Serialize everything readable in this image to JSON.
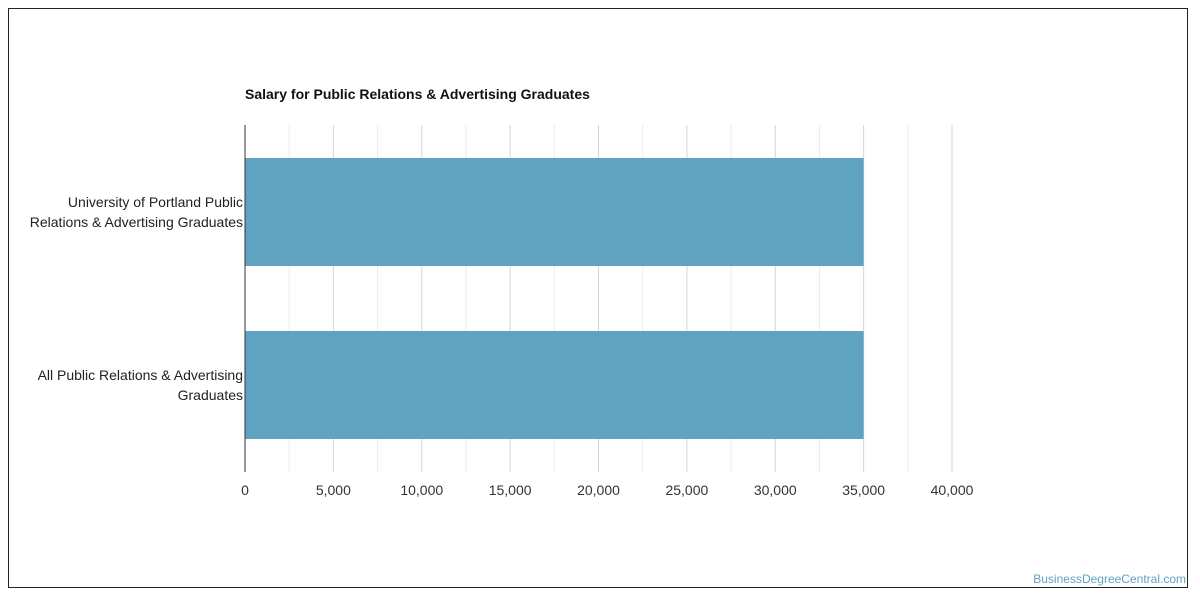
{
  "watermark": "BusinessDegreeCentral.com",
  "chart_data": {
    "type": "bar",
    "orientation": "horizontal",
    "title": "Salary for Public Relations & Advertising Graduates",
    "categories": [
      [
        "University of Portland Public",
        "Relations & Advertising Graduates"
      ],
      [
        "All Public Relations & Advertising",
        "Graduates"
      ]
    ],
    "values": [
      35000,
      35000
    ],
    "xlim": [
      0,
      40000
    ],
    "xticks": [
      0,
      5000,
      10000,
      15000,
      20000,
      25000,
      30000,
      35000,
      40000
    ],
    "tick_labels": [
      "0",
      "5,000",
      "10,000",
      "15,000",
      "20,000",
      "25,000",
      "30,000",
      "35,000",
      "40,000"
    ],
    "bar_color": "#5fa3c0",
    "grid": true,
    "xlabel": "",
    "ylabel": ""
  }
}
